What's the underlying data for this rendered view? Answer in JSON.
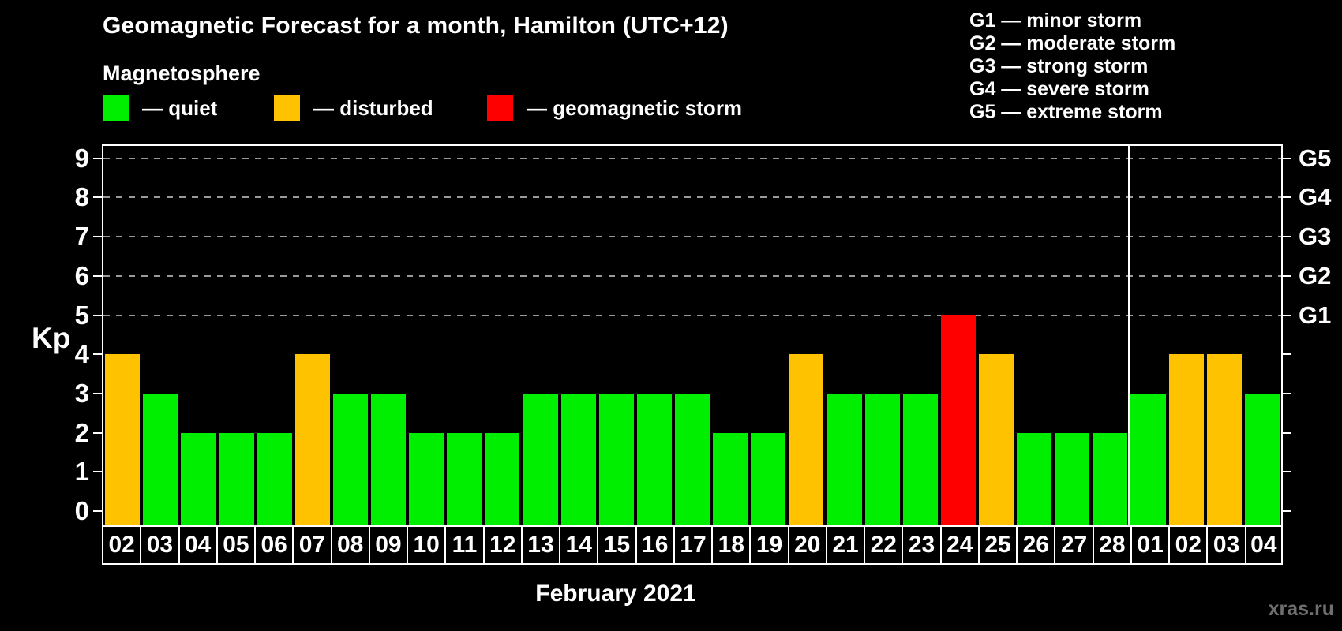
{
  "title": "Geomagnetic Forecast for a month, Hamilton (UTC+12)",
  "subtitle": "Magnetosphere",
  "legend": [
    {
      "name": "quiet",
      "label": "— quiet",
      "color": "#00ee00"
    },
    {
      "name": "disturbed",
      "label": "— disturbed",
      "color": "#ffc200"
    },
    {
      "name": "geomagnetic-storm",
      "label": "— geomagnetic storm",
      "color": "#ff0000"
    }
  ],
  "g_legend": [
    "G1 — minor storm",
    "G2 — moderate storm",
    "G3 — strong storm",
    "G4 — severe storm",
    "G5 — extreme storm"
  ],
  "watermark": "xras.ru",
  "chart_data": {
    "type": "bar",
    "title": "Geomagnetic Forecast for a month, Hamilton (UTC+12)",
    "ylabel": "Kp",
    "xlabel": "February 2021",
    "categories": [
      "02",
      "03",
      "04",
      "05",
      "06",
      "07",
      "08",
      "09",
      "10",
      "11",
      "12",
      "13",
      "14",
      "15",
      "16",
      "17",
      "18",
      "19",
      "20",
      "21",
      "22",
      "23",
      "24",
      "25",
      "26",
      "27",
      "28",
      "01",
      "02",
      "03",
      "04"
    ],
    "values": [
      4,
      3,
      2,
      2,
      2,
      4,
      3,
      3,
      2,
      2,
      2,
      3,
      3,
      3,
      3,
      3,
      2,
      2,
      4,
      3,
      3,
      3,
      5,
      4,
      2,
      2,
      2,
      3,
      4,
      4,
      3
    ],
    "statuses": [
      "disturbed",
      "quiet",
      "quiet",
      "quiet",
      "quiet",
      "disturbed",
      "quiet",
      "quiet",
      "quiet",
      "quiet",
      "quiet",
      "quiet",
      "quiet",
      "quiet",
      "quiet",
      "quiet",
      "quiet",
      "quiet",
      "disturbed",
      "quiet",
      "quiet",
      "quiet",
      "storm",
      "disturbed",
      "quiet",
      "quiet",
      "quiet",
      "quiet",
      "disturbed",
      "disturbed",
      "quiet"
    ],
    "status_colors": {
      "quiet": "#00ee00",
      "disturbed": "#ffc200",
      "storm": "#ff0000"
    },
    "ylim": [
      0,
      9.35
    ],
    "yticks": [
      0,
      1,
      2,
      3,
      4,
      5,
      6,
      7,
      8,
      9
    ],
    "gridlines_at_kp": [
      5,
      6,
      7,
      8,
      9
    ],
    "right_axis_labels": [
      {
        "kp": 5,
        "label": "G1"
      },
      {
        "kp": 6,
        "label": "G2"
      },
      {
        "kp": 7,
        "label": "G3"
      },
      {
        "kp": 8,
        "label": "G4"
      },
      {
        "kp": 9,
        "label": "G5"
      }
    ],
    "month_boundary_after_index": 26,
    "grid_color": "#9a9a9a",
    "legend_note": "gridlines shown only at G-storm levels Kp 5–9"
  }
}
